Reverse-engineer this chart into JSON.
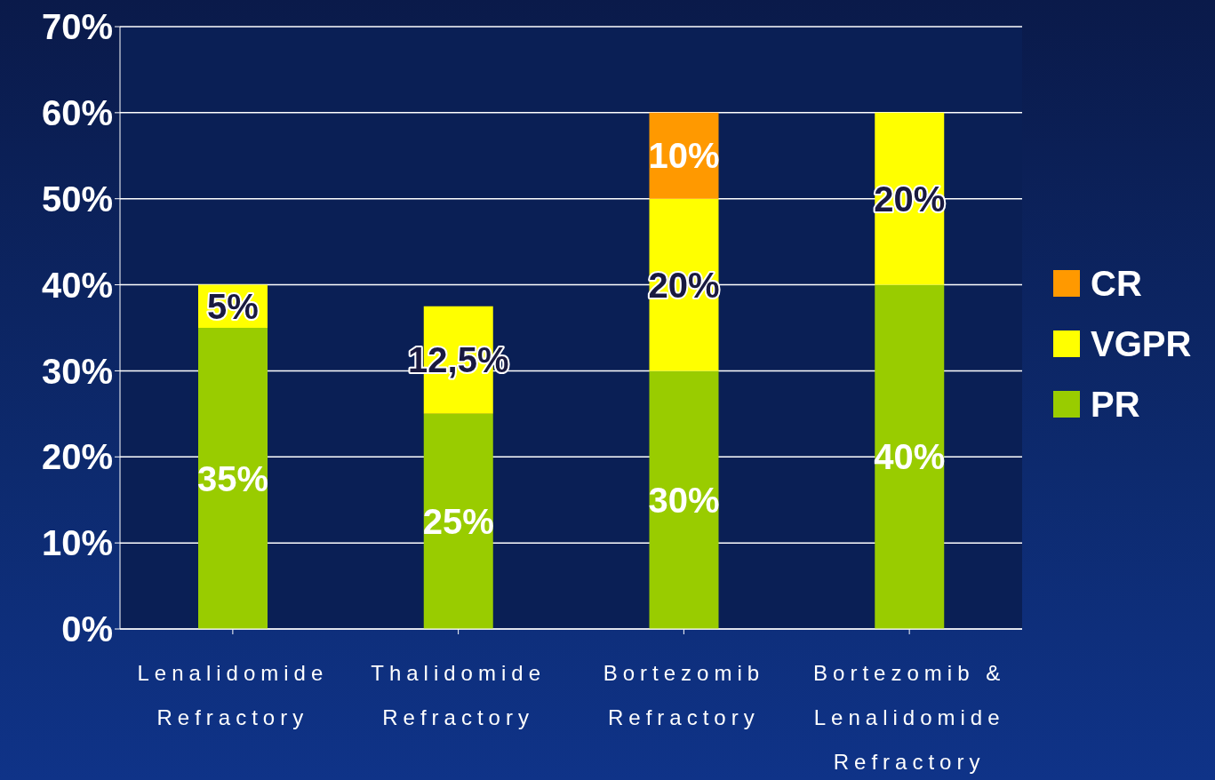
{
  "chart_data": {
    "type": "bar",
    "stacked": true,
    "categories": [
      "Lenalidomide Refractory",
      "Thalidomide Refractory",
      "Bortezomib Refractory",
      "Bortezomib & Lenalidomide Refractory"
    ],
    "series": [
      {
        "name": "PR",
        "color": "#99cc00",
        "values": [
          35,
          25,
          30,
          40
        ],
        "value_labels": [
          "35%",
          "25%",
          "30%",
          "40%"
        ]
      },
      {
        "name": "VGPR",
        "color": "#ffff00",
        "values": [
          5,
          12.5,
          20,
          20
        ],
        "value_labels": [
          "5%",
          "12,5%",
          "20%",
          "20%"
        ]
      },
      {
        "name": "CR",
        "color": "#ff9900",
        "values": [
          null,
          null,
          10,
          null
        ],
        "value_labels": [
          null,
          null,
          "10%",
          null
        ]
      }
    ],
    "ylim": [
      0,
      70
    ],
    "yticks": [
      {
        "value": 0,
        "label": "0%"
      },
      {
        "value": 10,
        "label": "10%"
      },
      {
        "value": 20,
        "label": "20%"
      },
      {
        "value": 30,
        "label": "30%"
      },
      {
        "value": 40,
        "label": "40%"
      },
      {
        "value": 50,
        "label": "50%"
      },
      {
        "value": 60,
        "label": "60%"
      },
      {
        "value": 70,
        "label": "70%"
      }
    ],
    "grid": "y",
    "legend": "right"
  }
}
